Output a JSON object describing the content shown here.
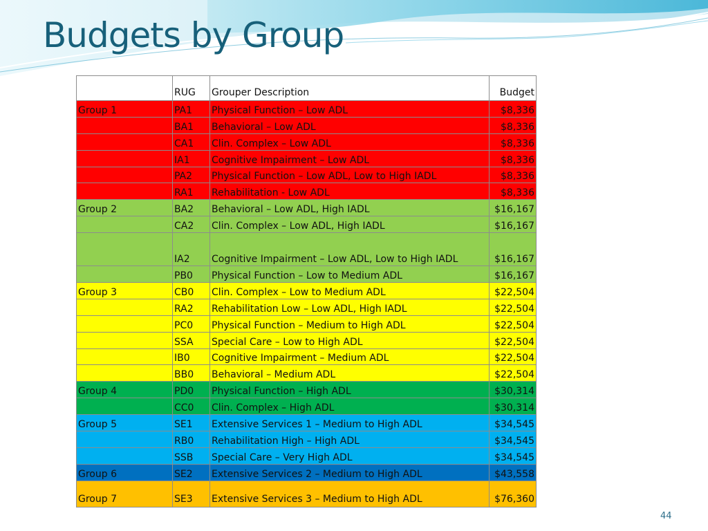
{
  "slide": {
    "title": "Budgets by Group",
    "page_number": "44"
  },
  "colors": {
    "title": "#17607a",
    "group_1": "#ff0000",
    "group_2": "#92d050",
    "group_3": "#ffff00",
    "group_4": "#00b050",
    "group_5": "#00b0f0",
    "group_6": "#0070c0",
    "group_7": "#ffc000"
  },
  "table": {
    "headers": {
      "group": "",
      "rug": "RUG",
      "description": "Grouper Description",
      "budget": "Budget"
    },
    "rows": [
      {
        "group": "Group 1",
        "rug": "PA1",
        "description": "Physical Function – Low ADL",
        "budget": "$8,336",
        "color_key": "group_1"
      },
      {
        "group": "",
        "rug": "BA1",
        "description": "Behavioral – Low ADL",
        "budget": "$8,336",
        "color_key": "group_1"
      },
      {
        "group": "",
        "rug": "CA1",
        "description": "Clin. Complex – Low ADL",
        "budget": "$8,336",
        "color_key": "group_1"
      },
      {
        "group": "",
        "rug": "IA1",
        "description": "Cognitive Impairment – Low ADL",
        "budget": "$8,336",
        "color_key": "group_1"
      },
      {
        "group": "",
        "rug": "PA2",
        "description": "Physical Function – Low ADL, Low to High IADL",
        "budget": "$8,336",
        "color_key": "group_1"
      },
      {
        "group": "",
        "rug": "RA1",
        "description": "Rehabilitation - Low ADL",
        "budget": "$8,336",
        "color_key": "group_1"
      },
      {
        "group": "Group 2",
        "rug": "BA2",
        "description": "Behavioral – Low ADL, High IADL",
        "budget": "$16,167",
        "color_key": "group_2"
      },
      {
        "group": "",
        "rug": "CA2",
        "description": "Clin. Complex – Low ADL, High IADL",
        "budget": "$16,167",
        "color_key": "group_2"
      },
      {
        "group": "",
        "rug": "IA2",
        "description": "Cognitive Impairment – Low ADL, Low to High IADL",
        "budget": "$16,167",
        "color_key": "group_2"
      },
      {
        "group": "",
        "rug": "PB0",
        "description": "Physical Function – Low to Medium ADL",
        "budget": "$16,167",
        "color_key": "group_2"
      },
      {
        "group": "Group 3",
        "rug": "CB0",
        "description": "Clin. Complex – Low to Medium ADL",
        "budget": "$22,504",
        "color_key": "group_3"
      },
      {
        "group": "",
        "rug": "RA2",
        "description": "Rehabilitation Low – Low ADL, High IADL",
        "budget": "$22,504",
        "color_key": "group_3"
      },
      {
        "group": "",
        "rug": "PC0",
        "description": "Physical Function – Medium to High ADL",
        "budget": "$22,504",
        "color_key": "group_3"
      },
      {
        "group": "",
        "rug": "SSA",
        "description": "Special Care – Low to High ADL",
        "budget": "$22,504",
        "color_key": "group_3"
      },
      {
        "group": "",
        "rug": "IB0",
        "description": "Cognitive Impairment – Medium ADL",
        "budget": "$22,504",
        "color_key": "group_3"
      },
      {
        "group": "",
        "rug": "BB0",
        "description": "Behavioral – Medium ADL",
        "budget": "$22,504",
        "color_key": "group_3"
      },
      {
        "group": "Group 4",
        "rug": "PD0",
        "description": "Physical Function – High ADL",
        "budget": "$30,314",
        "color_key": "group_4"
      },
      {
        "group": "",
        "rug": "CC0",
        "description": "Clin. Complex – High ADL",
        "budget": "$30,314",
        "color_key": "group_4"
      },
      {
        "group": "Group 5",
        "rug": "SE1",
        "description": "Extensive Services 1 – Medium to High ADL",
        "budget": "$34,545",
        "color_key": "group_5"
      },
      {
        "group": "",
        "rug": "RB0",
        "description": "Rehabilitation High – High ADL",
        "budget": "$34,545",
        "color_key": "group_5"
      },
      {
        "group": "",
        "rug": "SSB",
        "description": "Special Care – Very High ADL",
        "budget": "$34,545",
        "color_key": "group_5"
      },
      {
        "group": "Group 6",
        "rug": "SE2",
        "description": "Extensive Services 2 – Medium to High ADL",
        "budget": "$43,558",
        "color_key": "group_6"
      },
      {
        "group": "Group 7",
        "rug": "SE3",
        "description": "Extensive Services 3 – Medium to High ADL",
        "budget": "$76,360",
        "color_key": "group_7"
      }
    ]
  }
}
